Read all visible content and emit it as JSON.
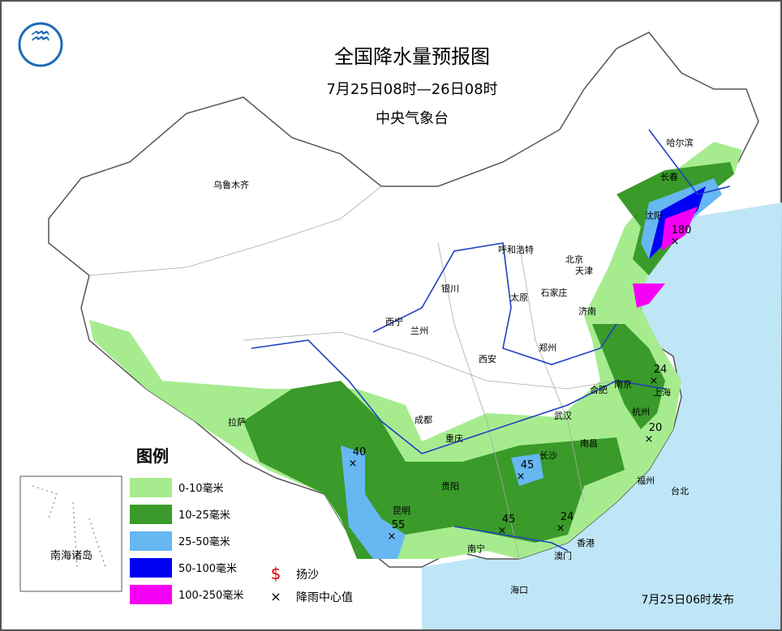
{
  "header": {
    "title": "全国降水量预报图",
    "period": "7月25日08时—26日08时",
    "issuer": "中央气象台"
  },
  "legend": {
    "title": "图例",
    "items": [
      {
        "label": "0-10毫米",
        "color": "#a6ec8f"
      },
      {
        "label": "10-25毫米",
        "color": "#3a9a2a"
      },
      {
        "label": "25-50毫米",
        "color": "#66b7f2"
      },
      {
        "label": "50-100毫米",
        "color": "#0000f5"
      },
      {
        "label": "100-250毫米",
        "color": "#f500f5"
      }
    ],
    "symbols": [
      "扬沙",
      "降雨中心值"
    ]
  },
  "cities": [
    "乌鲁木齐",
    "哈尔滨",
    "长春",
    "沈阳",
    "呼和浩特",
    "北京",
    "天津",
    "石家庄",
    "太原",
    "银川",
    "西宁",
    "兰州",
    "济南",
    "郑州",
    "西安",
    "合肥",
    "南京",
    "上海",
    "武汉",
    "杭州",
    "成都",
    "拉萨",
    "重庆",
    "长沙",
    "南昌",
    "贵阳",
    "福州",
    "台北",
    "昆明",
    "南宁",
    "香港",
    "澳门",
    "海口"
  ],
  "rain_centers": [
    180,
    24,
    20,
    40,
    45,
    45,
    55,
    24
  ],
  "inset": "南海诸岛",
  "footer": "7月25日06时发布"
}
